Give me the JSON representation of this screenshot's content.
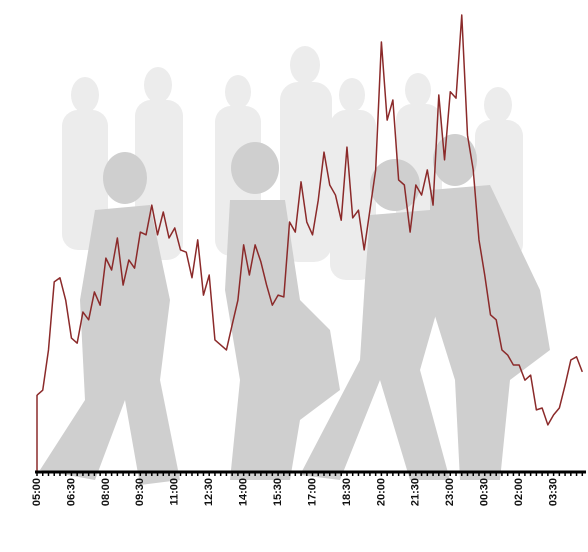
{
  "chart_data": {
    "type": "line",
    "categories": [
      "05:00",
      null,
      null,
      null,
      null,
      null,
      "06:30",
      null,
      null,
      null,
      null,
      null,
      "08:00",
      null,
      null,
      null,
      null,
      null,
      "09:30",
      null,
      null,
      null,
      null,
      null,
      "11:00",
      null,
      null,
      null,
      null,
      null,
      "12:30",
      null,
      null,
      null,
      null,
      null,
      "14:00",
      null,
      null,
      null,
      null,
      null,
      "15:30",
      null,
      null,
      null,
      null,
      null,
      "17:00",
      null,
      null,
      null,
      null,
      null,
      "18:30",
      null,
      null,
      null,
      null,
      null,
      "20:00",
      null,
      null,
      null,
      null,
      null,
      "21:30",
      null,
      null,
      null,
      null,
      null,
      "23:00",
      null,
      null,
      null,
      null,
      null,
      "00:30",
      null,
      null,
      null,
      null,
      null,
      "02:00",
      null,
      null,
      null,
      null,
      null,
      "03:30",
      null,
      null,
      null,
      null,
      null
    ],
    "values": [
      16.8,
      17.9,
      26.7,
      41.6,
      42.5,
      37.6,
      29.3,
      28.2,
      35.0,
      33.3,
      39.4,
      36.5,
      46.8,
      44.2,
      51.2,
      40.9,
      46.4,
      44.6,
      52.5,
      51.9,
      58.4,
      51.9,
      56.9,
      51.2,
      53.4,
      48.6,
      48.1,
      42.5,
      50.8,
      38.7,
      43.1,
      28.9,
      27.8,
      26.7,
      32.2,
      37.6,
      49.7,
      43.1,
      49.7,
      46.0,
      40.9,
      36.5,
      38.7,
      38.3,
      54.7,
      52.5,
      63.5,
      54.7,
      51.9,
      59.5,
      70.0,
      62.8,
      60.6,
      55.1,
      71.1,
      55.6,
      57.3,
      48.6,
      57.3,
      66.1,
      94.1,
      77.0,
      81.4,
      63.9,
      62.8,
      52.5,
      62.8,
      60.6,
      66.1,
      58.4,
      82.5,
      68.3,
      83.2,
      81.8,
      100,
      73.7,
      66.1,
      50.8,
      43.1,
      34.4,
      33.3,
      26.7,
      25.6,
      23.4,
      23.4,
      20.1,
      21.2,
      13.6,
      14.0,
      10.3,
      12.5,
      14.0,
      19.0,
      24.5,
      25.2,
      21.9
    ],
    "color": "#8b2a2a",
    "ylim": [
      0,
      100
    ]
  }
}
